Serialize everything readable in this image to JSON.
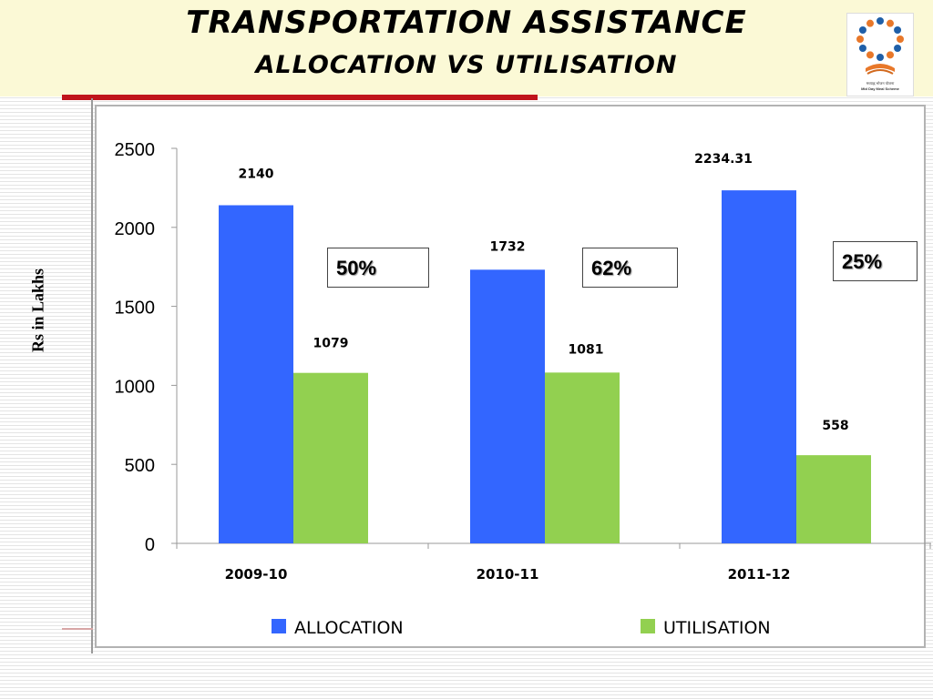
{
  "slide": {
    "title_line1": "TRANSPORTATION  ASSISTANCE",
    "title_line2": "ALLOCATION   VS   UTILISATION",
    "logo_text_line1": "मध्याह्न भोजन योजना",
    "logo_text_line2": "Mid Day Meal Scheme",
    "y_axis_title": "Rs in Lakhs",
    "callouts": [
      "50%",
      "62%",
      "25%"
    ]
  },
  "colors": {
    "allocation": "#3366ff",
    "utilisation": "#92d050",
    "title_accent": "#c0141b"
  },
  "chart_data": {
    "type": "bar",
    "categories": [
      "2009-10",
      "2010-11",
      "2011-12"
    ],
    "series": [
      {
        "name": "ALLOCATION",
        "values": [
          2140,
          1732,
          2234.31
        ],
        "labels": [
          "2140",
          "1732",
          "2234.31"
        ]
      },
      {
        "name": "UTILISATION",
        "values": [
          1079,
          1081,
          558
        ],
        "labels": [
          "1079",
          "1081",
          "558"
        ]
      }
    ],
    "ylim": [
      0,
      2500
    ],
    "yticks": [
      0,
      500,
      1000,
      1500,
      2000,
      2500
    ],
    "ylabel": "Rs in Lakhs",
    "legend_position": "bottom",
    "grid": false
  }
}
